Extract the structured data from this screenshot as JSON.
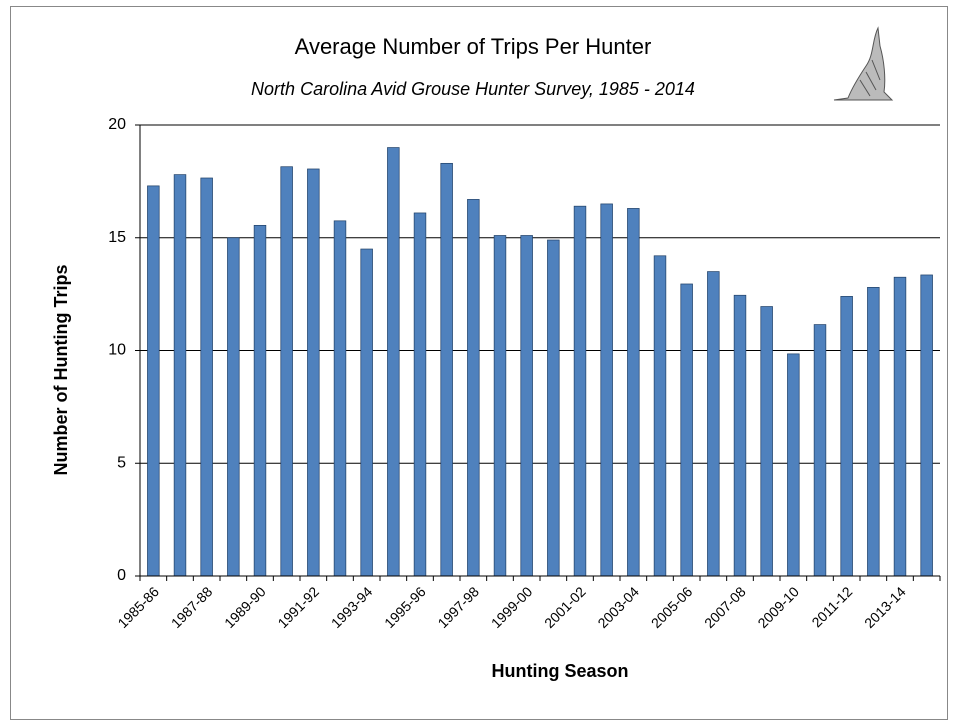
{
  "chart_data": {
    "type": "bar",
    "title": "Average Number of Trips Per Hunter",
    "subtitle": "North Carolina Avid Grouse Hunter Survey, 1985 - 2014",
    "x_label": "Hunting Season",
    "y_label": "Number of Hunting Trips",
    "categories": [
      "1985-86",
      null,
      "1987-88",
      null,
      "1989-90",
      null,
      "1991-92",
      null,
      "1993-94",
      null,
      "1995-96",
      null,
      "1997-98",
      null,
      "1999-00",
      null,
      "2001-02",
      null,
      "2003-04",
      null,
      "2005-06",
      null,
      "2007-08",
      null,
      "2009-10",
      null,
      "2011-12",
      null,
      "2013-14",
      null
    ],
    "values": [
      17.3,
      17.8,
      17.65,
      15.0,
      15.55,
      18.15,
      18.05,
      15.75,
      14.5,
      19.0,
      16.1,
      18.3,
      16.7,
      15.1,
      15.1,
      14.9,
      16.4,
      16.5,
      16.3,
      14.2,
      12.95,
      13.5,
      12.45,
      11.95,
      9.85,
      11.15,
      12.4,
      12.8,
      13.25,
      13.35
    ],
    "color": "#4f81bd",
    "ylim": [
      0,
      20
    ],
    "yticks": [
      0,
      5,
      10,
      15,
      20
    ],
    "grid": true
  }
}
